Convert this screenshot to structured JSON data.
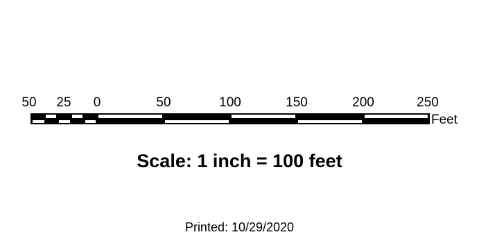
{
  "scale_bar": {
    "tick_labels": [
      "50",
      "25",
      "0",
      "50",
      "100",
      "150",
      "200",
      "250"
    ],
    "units": "Feet",
    "colors": {
      "fill": "#000000",
      "background": "#ffffff"
    }
  },
  "scale_statement": "Scale: 1 inch = 100 feet",
  "print_date": "Printed: 10/29/2020"
}
